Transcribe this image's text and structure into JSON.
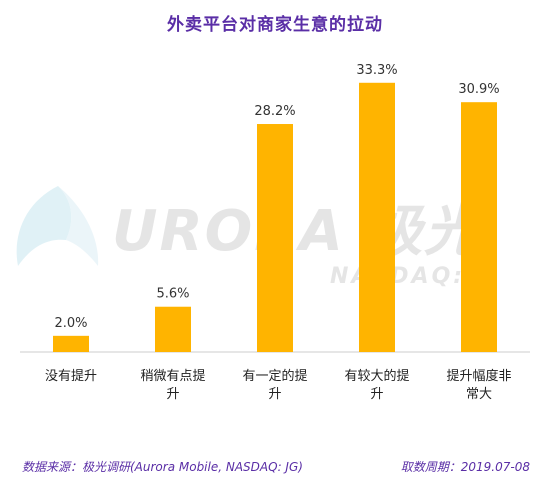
{
  "title": "外卖平台对商家生意的拉动",
  "watermark": {
    "word": "URORA 极光",
    "sub": "NASDAQ:JQ"
  },
  "footer": {
    "source": "数据来源：极光调研(Aurora Mobile, NASDAQ: JG)",
    "period": "取数周期：2019.07-08"
  },
  "colors": {
    "bar": "#ffb400",
    "title": "#5a2ea6",
    "axis": "#cccccc"
  },
  "chart_data": {
    "type": "bar",
    "title": "外卖平台对商家生意的拉动",
    "categories": [
      "没有提升",
      "稍微有点提升",
      "有一定的提升",
      "有较大的提升",
      "提升幅度非常大"
    ],
    "category_lines": [
      [
        "没有提升"
      ],
      [
        "稍微有点提",
        "升"
      ],
      [
        "有一定的提",
        "升"
      ],
      [
        "有较大的提",
        "升"
      ],
      [
        "提升幅度非",
        "常大"
      ]
    ],
    "values": [
      2.0,
      5.6,
      28.2,
      33.3,
      30.9
    ],
    "value_labels": [
      "2.0%",
      "5.6%",
      "28.2%",
      "33.3%",
      "30.9%"
    ],
    "unit": "%",
    "ylim": [
      0,
      35
    ],
    "grid": false,
    "legend": "none"
  }
}
